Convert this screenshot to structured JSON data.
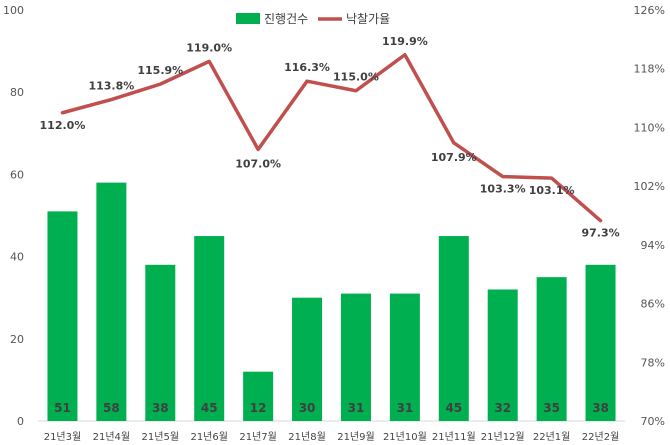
{
  "chart_data": {
    "type": "bar",
    "categories": [
      "21년3월",
      "21년4월",
      "21년5월",
      "21년6월",
      "21년7월",
      "21년8월",
      "21년9월",
      "21년10월",
      "21년11월",
      "21년12월",
      "22년1월",
      "22년2월"
    ],
    "series": [
      {
        "name": "진행건수",
        "type": "bar",
        "axis": "left",
        "color": "#00b050",
        "values": [
          51,
          58,
          38,
          45,
          12,
          30,
          31,
          31,
          45,
          32,
          35,
          38
        ],
        "labels": [
          "51",
          "58",
          "38",
          "45",
          "12",
          "30",
          "31",
          "31",
          "45",
          "32",
          "35",
          "38"
        ]
      },
      {
        "name": "낙찰가율",
        "type": "line",
        "axis": "right",
        "color": "#c0504d",
        "values": [
          112.0,
          113.8,
          115.9,
          119.0,
          107.0,
          116.3,
          115.0,
          119.9,
          107.9,
          103.3,
          103.1,
          97.3
        ],
        "labels": [
          "112.0%",
          "113.8%",
          "115.9%",
          "119.0%",
          "107.0%",
          "116.3%",
          "115.0%",
          "119.9%",
          "107.9%",
          "103.3%",
          "103.1%",
          "97.3%"
        ]
      }
    ],
    "y_left": {
      "min": 0,
      "max": 100,
      "ticks": [
        "0",
        "20",
        "40",
        "60",
        "80",
        "100"
      ]
    },
    "y_right": {
      "min": 70,
      "max": 126,
      "ticks": [
        "70%",
        "78%",
        "86%",
        "94%",
        "102%",
        "110%",
        "118%",
        "126%"
      ]
    },
    "legend_position": "top-center",
    "grid": false
  }
}
